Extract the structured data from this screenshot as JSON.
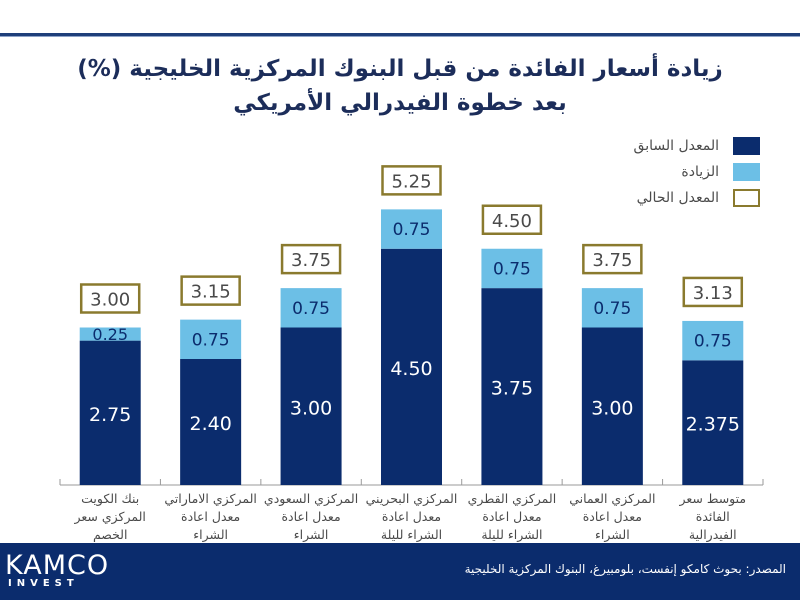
{
  "title_lines": [
    "زيادة أسعار الفائدة من قبل البنوك المركزية الخليجية (%)",
    "بعد خطوة الفيدرالي الأمريكي"
  ],
  "colors": {
    "previous": "#0b2c6d",
    "increase": "#6cbfe6",
    "current_border": "#8a7a2e",
    "title": "#1c2d5a",
    "footer": "#0b2c6d"
  },
  "chart_data": {
    "type": "bar",
    "stacked": true,
    "title": "زيادة أسعار الفائدة من قبل البنوك المركزية الخليجية (%) بعد خطوة الفيدرالي الأمريكي",
    "xlabel": "",
    "ylabel": "",
    "ylim": [
      0,
      5.5
    ],
    "grid": false,
    "legend_position": "top-right",
    "categories": [
      "بنك الكويت المركزي سعر الخصم",
      "المركزي الاماراتي معدل اعادة الشراء",
      "المركزي السعودي معدل اعادة الشراء",
      "المركزي البحريني معدل اعادة الشراء لليلة",
      "المركزي القطري معدل اعادة الشراء لليلة",
      "المركزي العماني معدل اعادة الشراء",
      "متوسط سعر الفائدة الفيدرالية"
    ],
    "category_lines": [
      [
        "بنك الكويت",
        "المركزي سعر",
        "الخصم"
      ],
      [
        "المركزي الاماراتي",
        "معدل اعادة الشراء"
      ],
      [
        "المركزي السعودي",
        "معدل اعادة الشراء"
      ],
      [
        "المركزي البحريني",
        "معدل اعادة",
        "الشراء لليلة"
      ],
      [
        "المركزي القطري",
        "معدل اعادة",
        "الشراء لليلة"
      ],
      [
        "المركزي العماني",
        "معدل اعادة الشراء"
      ],
      [
        "متوسط سعر",
        "الفائدة",
        "الفيدرالية"
      ]
    ],
    "series": [
      {
        "name": "المعدل السابق",
        "values": [
          2.75,
          2.4,
          3.0,
          4.5,
          3.75,
          3.0,
          2.375
        ],
        "labels": [
          "2.75",
          "2.40",
          "3.00",
          "4.50",
          "3.75",
          "3.00",
          "2.375"
        ]
      },
      {
        "name": "الزيادة",
        "values": [
          0.25,
          0.75,
          0.75,
          0.75,
          0.75,
          0.75,
          0.75
        ],
        "labels": [
          "0.25",
          "0.75",
          "0.75",
          "0.75",
          "0.75",
          "0.75",
          "0.75"
        ]
      },
      {
        "name": "المعدل الحالي",
        "values": [
          3.0,
          3.15,
          3.75,
          5.25,
          4.5,
          3.75,
          3.13
        ],
        "labels": [
          "3.00",
          "3.15",
          "3.75",
          "5.25",
          "4.50",
          "3.75",
          "3.13"
        ]
      }
    ]
  },
  "legend": [
    {
      "label": "المعدل السابق",
      "style": "previous"
    },
    {
      "label": "الزيادة",
      "style": "increase"
    },
    {
      "label": "المعدل الحالي",
      "style": "current"
    }
  ],
  "footer": {
    "logo_main": "KAMCO",
    "logo_sub": "INVEST",
    "source": "المصدر: بحوث كامكو إنفست، بلومبيرغ، البنوك المركزية الخليجية"
  }
}
